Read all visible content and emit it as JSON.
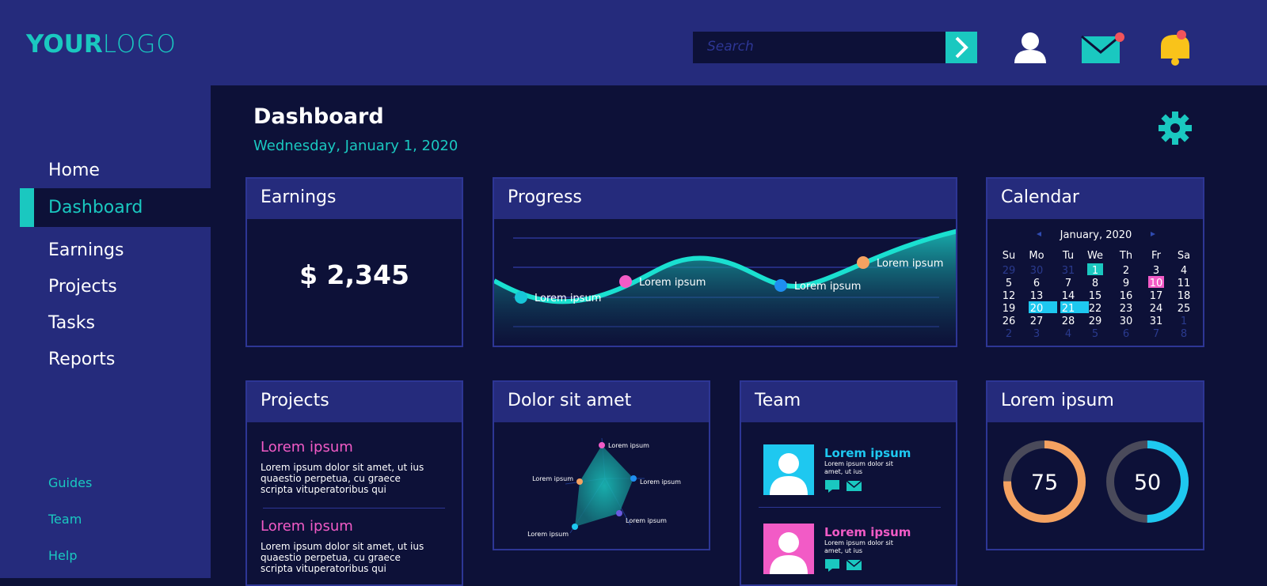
{
  "header": {
    "logo_bold": "YOUR",
    "logo_light": "LOGO",
    "search_placeholder": "Search"
  },
  "sidebar": {
    "nav": [
      "Home",
      "Dashboard",
      "Earnings",
      "Projects",
      "Tasks",
      "Reports"
    ],
    "active": 1,
    "footer_links": [
      "Guides",
      "Team",
      "Help"
    ]
  },
  "main": {
    "title": "Dashboard",
    "date": "Wednesday, January 1, 2020"
  },
  "earnings": {
    "title": "Earnings",
    "amount": "$ 2,345"
  },
  "progress": {
    "title": "Progress",
    "points": [
      {
        "label": "Lorem ipsum",
        "color": "#17c6d8"
      },
      {
        "label": "Lorem ipsum",
        "color": "#f25bc6"
      },
      {
        "label": "Lorem ipsum",
        "color": "#1f8ef1"
      },
      {
        "label": "Lorem ipsum",
        "color": "#f4a261"
      }
    ]
  },
  "calendar": {
    "title": "Calendar",
    "month": "January, 2020",
    "weekdays": [
      "Su",
      "Mo",
      "Tu",
      "We",
      "Th",
      "Fr",
      "Sa"
    ],
    "weeks": [
      [
        29,
        30,
        31,
        1,
        2,
        3,
        4
      ],
      [
        5,
        6,
        7,
        8,
        9,
        10,
        11
      ],
      [
        12,
        13,
        14,
        15,
        16,
        17,
        18
      ],
      [
        19,
        20,
        21,
        22,
        23,
        24,
        25
      ],
      [
        26,
        27,
        28,
        29,
        30,
        31,
        1
      ],
      [
        2,
        3,
        4,
        5,
        6,
        7,
        8
      ]
    ],
    "highlights": [
      {
        "week": 0,
        "day": 3,
        "color": "#1ac8c0"
      },
      {
        "week": 1,
        "day": 5,
        "color": "#f25bc6"
      },
      {
        "week": 3,
        "day": 1,
        "color": "#1ec8f0"
      },
      {
        "week": 3,
        "day": 2,
        "color": "#1ec8f0"
      }
    ]
  },
  "projects": {
    "title": "Projects",
    "items": [
      {
        "heading": "Lorem ipsum",
        "text": "Lorem ipsum dolor sit amet, ut ius quaestio perpetua, cu graece scripta vituperatoribus qui"
      },
      {
        "heading": "Lorem ipsum",
        "text": "Lorem ipsum dolor sit amet, ut ius quaestio perpetua, cu graece scripta vituperatoribus qui"
      }
    ]
  },
  "radar": {
    "title": "Dolor sit amet",
    "labels": [
      "Lorem ipsum",
      "Lorem ipsum",
      "Lorem ipsum",
      "Lorem ipsum",
      "Lorem ipsum"
    ]
  },
  "team": {
    "title": "Team",
    "members": [
      {
        "name": "Lorem ipsum",
        "text": "Lorem ipsum dolor sit amet, ut ius",
        "color": "#1ec8f0"
      },
      {
        "name": "Lorem ipsum",
        "text": "Lorem ipsum dolor sit amet, ut ius",
        "color": "#f25bc6"
      }
    ]
  },
  "gauges": {
    "title": "Lorem ipsum",
    "items": [
      {
        "value": 75,
        "color": "#f4a261"
      },
      {
        "value": 50,
        "color": "#1ec8f0"
      }
    ]
  }
}
